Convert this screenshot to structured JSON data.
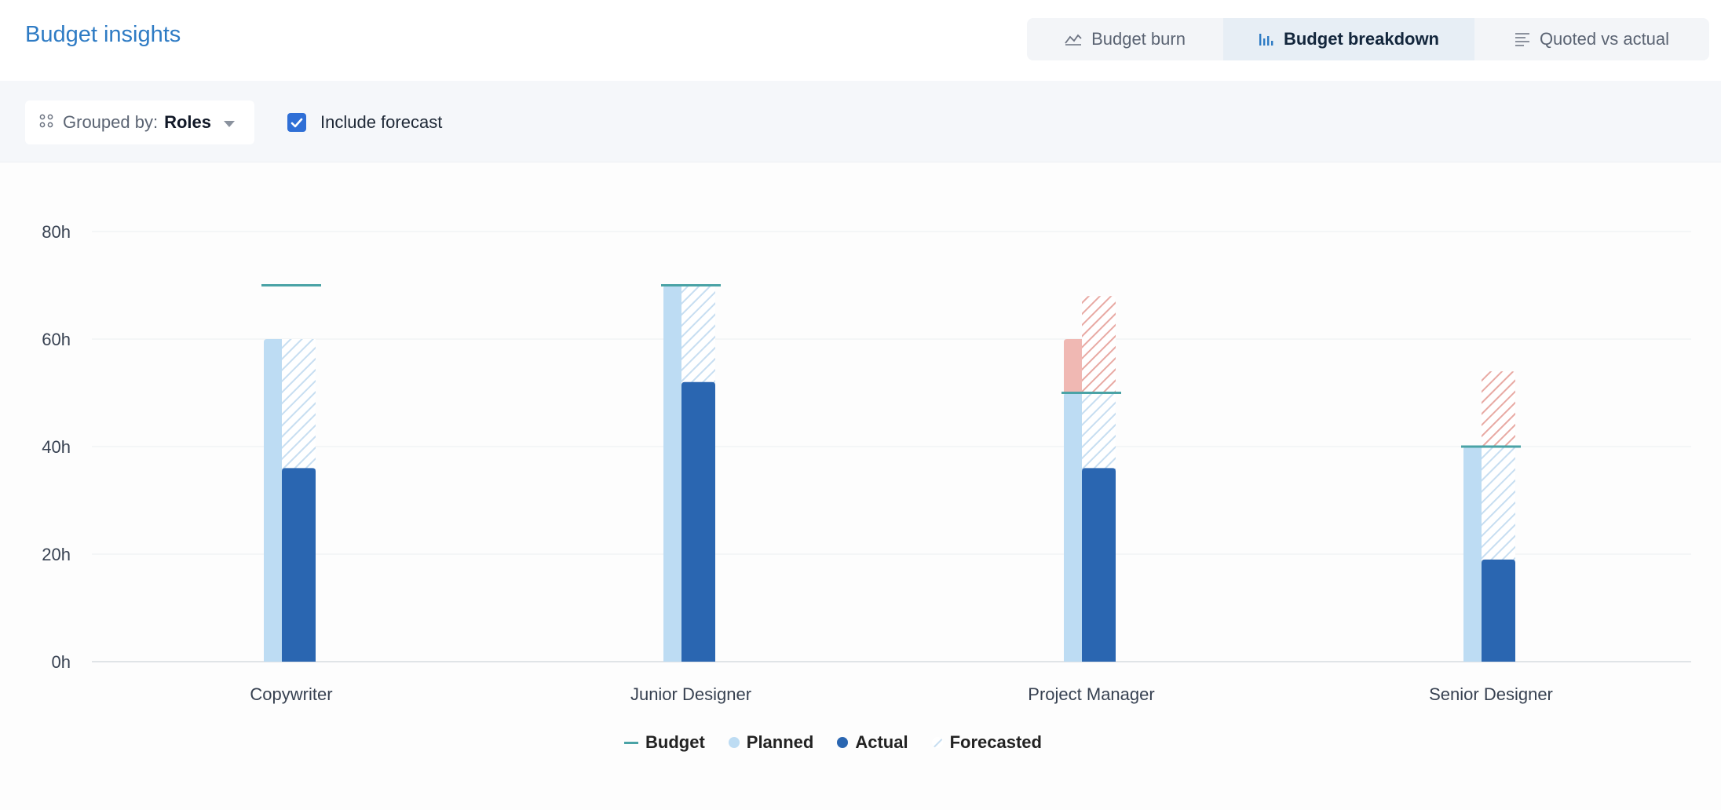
{
  "header": {
    "title": "Budget insights",
    "tabs": [
      {
        "label": "Budget burn",
        "icon": "line-chart-icon",
        "active": false
      },
      {
        "label": "Budget breakdown",
        "icon": "bar-chart-icon",
        "active": true
      },
      {
        "label": "Quoted vs actual",
        "icon": "list-icon",
        "active": false
      }
    ]
  },
  "filters": {
    "group_label": "Grouped by:",
    "group_value": "Roles",
    "forecast_label": "Include forecast",
    "forecast_checked": true
  },
  "colors": {
    "title": "#2e7bc4",
    "planned": "#bddcf3",
    "actual": "#2a66b1",
    "budget": "#4aa3a6",
    "over_budget": "#f0b8b3",
    "forecast_hatch": "#c7def1",
    "over_forecast_hatch": "#e8a9a3"
  },
  "chart_data": {
    "type": "bar",
    "categories": [
      "Copywriter",
      "Junior Designer",
      "Project Manager",
      "Senior Designer"
    ],
    "budget": [
      70,
      70,
      50,
      40
    ],
    "planned": [
      60,
      70,
      60,
      40
    ],
    "actual": [
      36,
      52,
      36,
      19
    ],
    "forecasted": [
      60,
      70,
      68,
      54
    ],
    "y_ticks": [
      "0h",
      "20h",
      "40h",
      "60h",
      "80h"
    ],
    "ylim": [
      0,
      80
    ],
    "grid": true,
    "legend": [
      "Budget",
      "Planned",
      "Actual",
      "Forecasted"
    ],
    "legend_position": "bottom"
  }
}
